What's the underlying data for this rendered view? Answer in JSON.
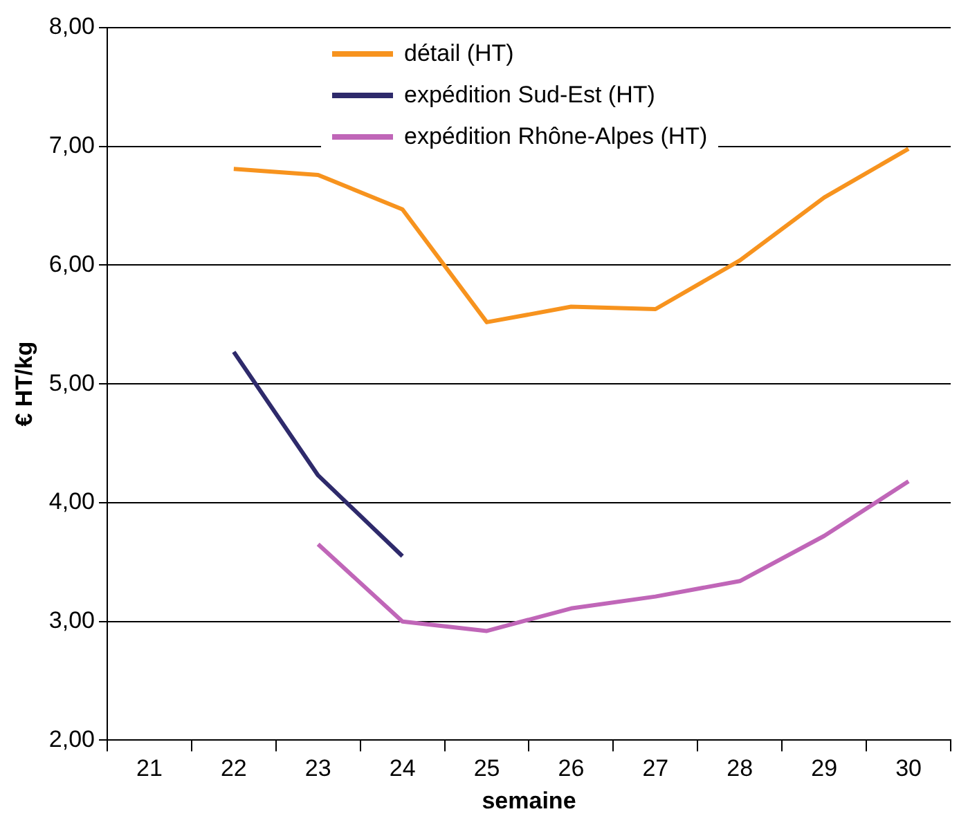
{
  "chart_data": {
    "type": "line",
    "ylabel": "€ HT/kg",
    "xlabel": "semaine",
    "categories": [
      "21",
      "22",
      "23",
      "24",
      "25",
      "26",
      "27",
      "28",
      "29",
      "30"
    ],
    "series": [
      {
        "name": "détail (HT)",
        "color": "#f7931e",
        "values": [
          null,
          6.81,
          6.76,
          6.47,
          5.52,
          5.65,
          5.63,
          6.04,
          6.57,
          6.98
        ]
      },
      {
        "name": "expédition Sud-Est (HT)",
        "color": "#2e2a6b",
        "values": [
          null,
          5.27,
          4.23,
          3.55,
          null,
          null,
          null,
          null,
          null,
          null
        ]
      },
      {
        "name": "expédition Rhône-Alpes (HT)",
        "color": "#c066b8",
        "values": [
          null,
          null,
          3.65,
          3.0,
          2.92,
          3.11,
          3.21,
          3.34,
          3.72,
          4.18
        ]
      }
    ],
    "ylim": [
      2,
      8
    ],
    "yticks": [
      {
        "value": 2,
        "label": "2,00"
      },
      {
        "value": 3,
        "label": "3,00"
      },
      {
        "value": 4,
        "label": "4,00"
      },
      {
        "value": 5,
        "label": "5,00"
      },
      {
        "value": 6,
        "label": "6,00"
      },
      {
        "value": 7,
        "label": "7,00"
      },
      {
        "value": 8,
        "label": "8,00"
      }
    ],
    "grid": "y",
    "legend": "top",
    "marker": "none",
    "line_style": "solid"
  }
}
